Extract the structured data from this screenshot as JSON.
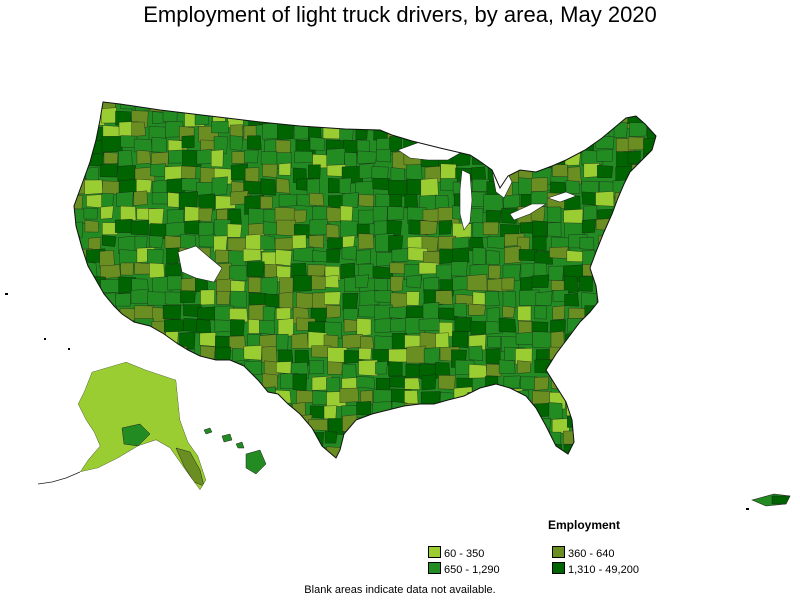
{
  "title": "Employment of light truck drivers, by area, May 2020",
  "legend": {
    "title": "Employment",
    "items": [
      {
        "label": "60 - 350",
        "color": "#9acd32"
      },
      {
        "label": "360 - 640",
        "color": "#6b8e23"
      },
      {
        "label": "650 - 1,290",
        "color": "#228b22"
      },
      {
        "label": "1,310 - 49,200",
        "color": "#006400"
      }
    ]
  },
  "footnote": "Blank areas indicate data not available."
}
